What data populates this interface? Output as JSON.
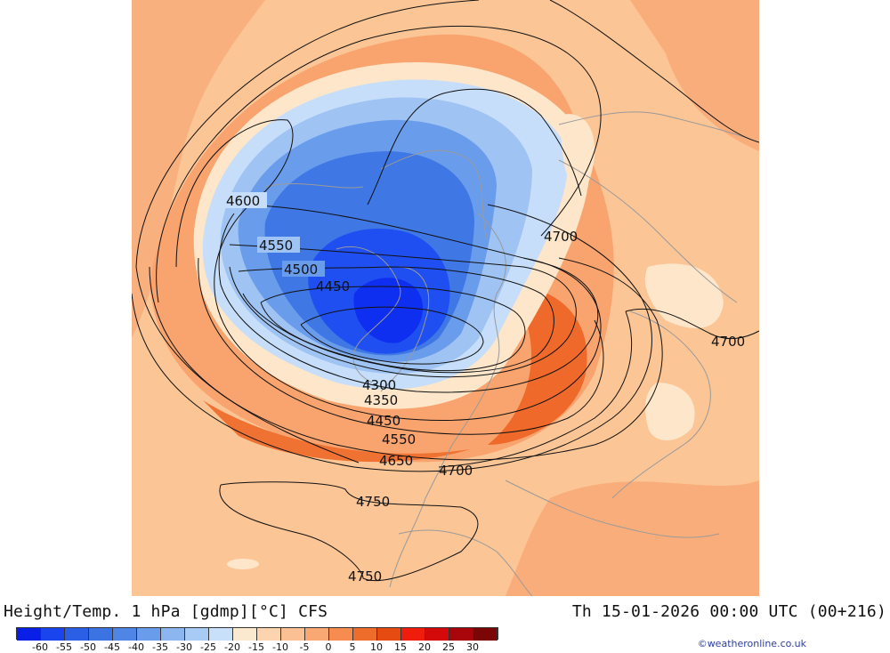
{
  "title": "Height/Temp. 1 hPa [gdmp][°C] CFS",
  "valid_time": "Th 15-01-2026 00:00 UTC (00+216)",
  "credit": "©weatheronline.co.uk",
  "contour_labels": [
    "4600",
    "4550",
    "4500",
    "4450",
    "4300",
    "4350",
    "4450",
    "4550",
    "4650",
    "4700",
    "4700",
    "4700",
    "4750",
    "4750"
  ],
  "legend": {
    "ticks": [
      "-60",
      "-55",
      "-50",
      "-45",
      "-40",
      "-35",
      "-30",
      "-25",
      "-20",
      "-15",
      "-10",
      "-5",
      "0",
      "5",
      "10",
      "15",
      "20",
      "25",
      "30"
    ],
    "colors": [
      "#0a1fe6",
      "#1a45ee",
      "#2a5fe6",
      "#3b73e2",
      "#4f86e6",
      "#6a9cec",
      "#8cb6f0",
      "#a8cbf5",
      "#c8e0fa",
      "#fbe9cf",
      "#fcd4b0",
      "#fbc194",
      "#f9a874",
      "#f68c4f",
      "#ef6d2a",
      "#e64b12",
      "#f01c0c",
      "#d40a0a",
      "#a8060a",
      "#7a0606"
    ]
  },
  "colors": {
    "ocean_bg": "#fbc596",
    "cold_core": "#2d66e8",
    "warm_band": "#f4792f"
  }
}
